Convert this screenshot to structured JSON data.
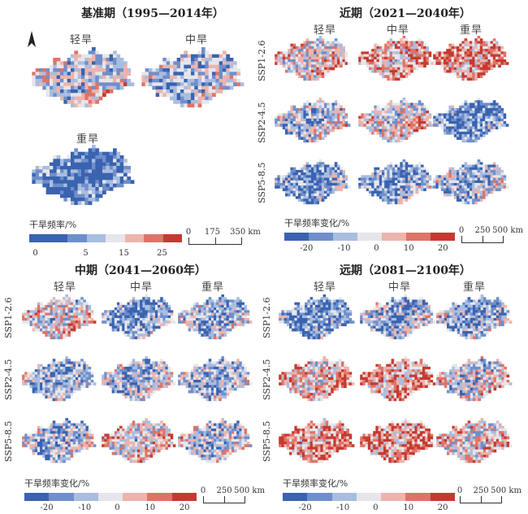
{
  "panels": {
    "baseline": {
      "title": "基准期（1995—2014年）"
    },
    "near": {
      "title": "近期（2021—2040年）"
    },
    "mid": {
      "title": "中期（2041—2060年）"
    },
    "far": {
      "title": "远期（2081—2100年）"
    }
  },
  "drought_levels": {
    "light": "轻旱",
    "moderate": "中旱",
    "severe": "重旱"
  },
  "scenarios": {
    "ssp126": "SSP1-2.6",
    "ssp245": "SSP2-4.5",
    "ssp585": "SSP5-8.5"
  },
  "north_arrow": "N",
  "legend_freq": {
    "label": "干旱频率/%",
    "ticks": [
      "0",
      "5",
      "15",
      "25"
    ],
    "scale": [
      "0",
      "175",
      "350 km"
    ]
  },
  "legend_change": {
    "label": "干旱频率变化/%",
    "ticks": [
      "-20",
      "-10",
      "0",
      "10",
      "20"
    ],
    "scale": [
      "0",
      "250",
      "500 km"
    ]
  },
  "colors": {
    "blue_dark": "#3a63b0",
    "blue_mid": "#6f8fcb",
    "blue_light": "#a9bde0",
    "neutral": "#e6e6ea",
    "red_light": "#ecb4ad",
    "red_mid": "#de7468",
    "red_dark": "#c53a30"
  },
  "map_bias": {
    "baseline": {
      "light": -0.1,
      "moderate": -0.2,
      "severe": -0.8
    },
    "near": {
      "ssp126": {
        "light": 0.15,
        "moderate": 0.45,
        "severe": 0.55
      },
      "ssp245": {
        "light": -0.15,
        "moderate": 0.1,
        "severe": -0.6
      },
      "ssp585": {
        "light": -0.5,
        "moderate": -0.45,
        "severe": -0.3
      }
    },
    "mid": {
      "ssp126": {
        "light": 0.1,
        "moderate": -0.5,
        "severe": -0.3
      },
      "ssp245": {
        "light": -0.3,
        "moderate": -0.2,
        "severe": -0.3
      },
      "ssp585": {
        "light": -0.2,
        "moderate": 0.2,
        "severe": -0.1
      }
    },
    "far": {
      "ssp126": {
        "light": -0.55,
        "moderate": -0.3,
        "severe": -0.35
      },
      "ssp245": {
        "light": 0.3,
        "moderate": 0.5,
        "severe": 0.05
      },
      "ssp585": {
        "light": 0.6,
        "moderate": 0.55,
        "severe": 0.2
      }
    }
  }
}
